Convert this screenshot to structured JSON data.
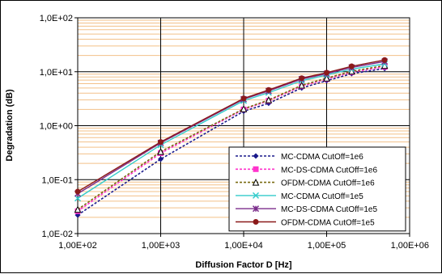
{
  "chart_data": {
    "type": "line",
    "xscale": "log",
    "yscale": "log",
    "xlim": [
      100,
      1000000
    ],
    "ylim": [
      0.01,
      100
    ],
    "xlabel": "Diffusion Factor D [Hz]",
    "ylabel": "Degradation (dB)",
    "x_tick_labels": [
      "1,00E+02",
      "1,00E+03",
      "1,00E+04",
      "1,00E+05",
      "1,00E+06"
    ],
    "y_tick_labels": [
      "1,0E-02",
      "1,0E-01",
      "1,0E+00",
      "1,0E+01",
      "1,0E+02"
    ],
    "grid": true,
    "legend_position": "bottom-right",
    "x": [
      100,
      1000,
      10000,
      20000,
      50000,
      100000,
      200000,
      500000
    ],
    "series": [
      {
        "name": "MC-CDMA CutOff=1e6",
        "color": "#1a1a8c",
        "dash": true,
        "marker": "diamond",
        "values": [
          0.022,
          0.24,
          1.85,
          2.6,
          5.0,
          6.8,
          9.2,
          11.5
        ]
      },
      {
        "name": "MC-DS-CDMA CutOff=1e6",
        "color": "#ff33cc",
        "dash": true,
        "marker": "square",
        "values": [
          0.026,
          0.31,
          2.0,
          2.9,
          5.4,
          7.3,
          9.8,
          12.3
        ]
      },
      {
        "name": "OFDM-CDMA CutOff=1e6",
        "color": "#7a6a10",
        "dash": true,
        "marker": "triangle",
        "values": [
          0.028,
          0.33,
          2.05,
          3.0,
          5.6,
          7.6,
          10.2,
          13.0
        ]
      },
      {
        "name": "MC-CDMA CutOff=1e5",
        "color": "#33cccc",
        "dash": false,
        "marker": "x",
        "values": [
          0.045,
          0.44,
          2.9,
          4.1,
          6.8,
          8.7,
          11.2,
          14.0
        ]
      },
      {
        "name": "MC-DS-CDMA CutOff=1e5",
        "color": "#7b2d8b",
        "dash": false,
        "marker": "star",
        "values": [
          0.055,
          0.48,
          3.1,
          4.4,
          7.3,
          9.2,
          12.0,
          15.5
        ]
      },
      {
        "name": "OFDM-CDMA CutOff=1e5",
        "color": "#8b1a1a",
        "dash": false,
        "marker": "circle",
        "values": [
          0.06,
          0.5,
          3.2,
          4.6,
          7.6,
          9.6,
          12.6,
          16.5
        ]
      }
    ]
  }
}
